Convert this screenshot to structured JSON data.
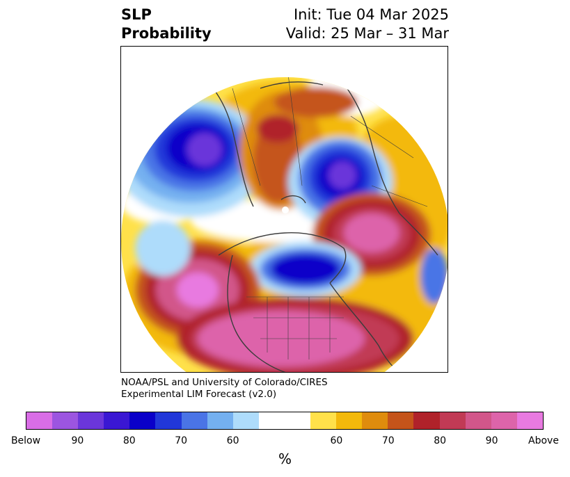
{
  "title": {
    "variable": "SLP",
    "product": "Probability",
    "init": "Init: Tue 04 Mar 2025",
    "valid": "Valid: 25 Mar – 31 Mar"
  },
  "credit": {
    "line1": "NOAA/PSL and University of Colorado/CIRES",
    "line2": "Experimental LIM Forecast (v2.0)"
  },
  "colorbar": {
    "colors": [
      "#d96de6",
      "#9c55e0",
      "#6b36da",
      "#3a17d3",
      "#0a00c9",
      "#2137d9",
      "#4a74e6",
      "#74b0f0",
      "#aedcfb",
      "#ffffff",
      "#ffffff",
      "#ffe14a",
      "#f3b90b",
      "#df8c0d",
      "#c5541a",
      "#b0222a",
      "#c13a55",
      "#d2568a",
      "#dd64aa",
      "#e87ae0"
    ],
    "tick_labels": [
      "Below",
      "90",
      "80",
      "70",
      "60",
      "60",
      "70",
      "80",
      "90",
      "Above"
    ],
    "unit": "%"
  },
  "map": {
    "projection": "north-polar-stereographic",
    "features": [
      "US state boundaries",
      "country boundaries",
      "coastlines"
    ]
  }
}
